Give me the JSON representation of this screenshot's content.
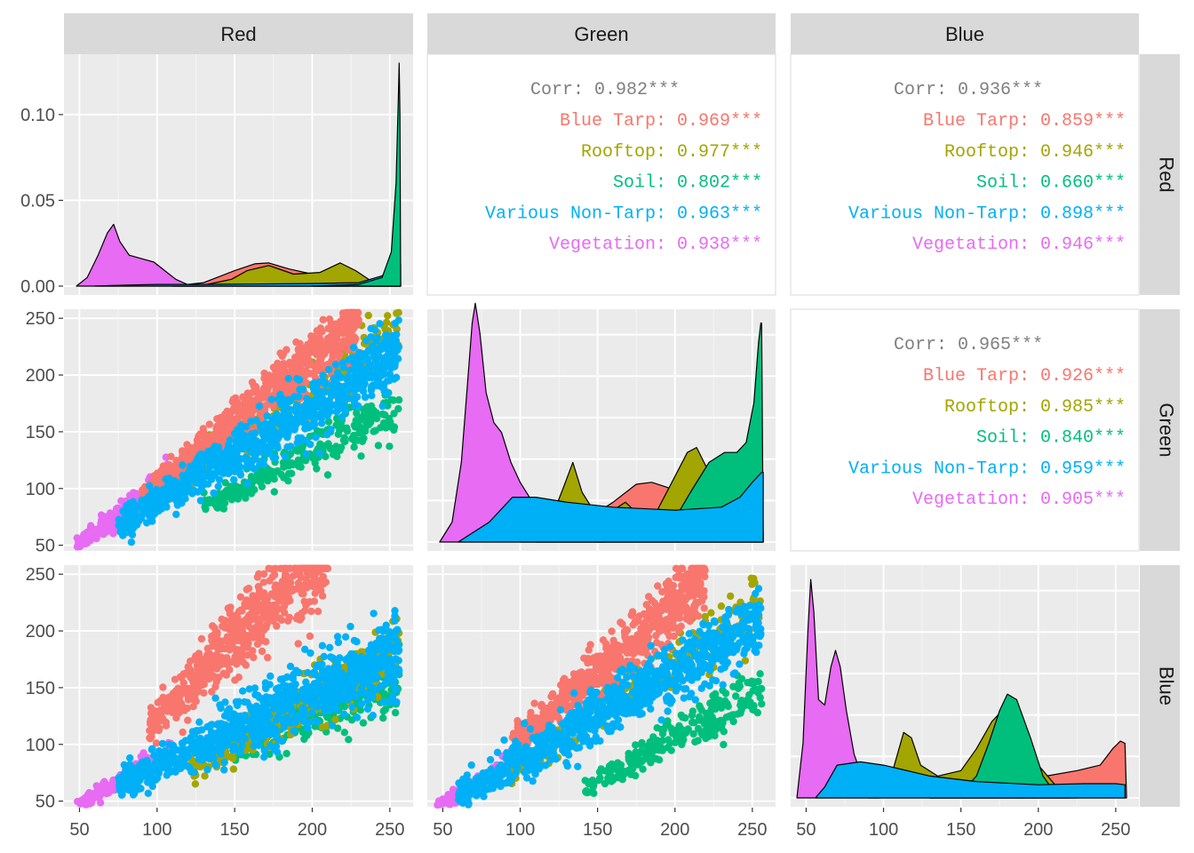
{
  "variables": [
    "Red",
    "Green",
    "Blue"
  ],
  "colors": {
    "Blue Tarp": "#F8766D",
    "Rooftop": "#A3A500",
    "Soil": "#00BF7D",
    "Various Non-Tarp": "#00B0F6",
    "Vegetation": "#E76BF3",
    "overall": "#7f7f7f"
  },
  "chart_data": {
    "type": "pairs",
    "title": "",
    "classes": [
      "Blue Tarp",
      "Rooftop",
      "Soil",
      "Various Non-Tarp",
      "Vegetation"
    ],
    "axes": {
      "x_ticks": [
        "50",
        "100",
        "150",
        "200",
        "250"
      ],
      "x_tick_values": [
        50,
        100,
        150,
        200,
        250
      ],
      "xlim": [
        40,
        265
      ],
      "scatter_y_ticks": [
        "50",
        "100",
        "150",
        "200",
        "250"
      ],
      "scatter_y_tick_values": [
        50,
        100,
        150,
        200,
        250
      ],
      "scatter_ylim": [
        45,
        258
      ],
      "density_y_ticks": [
        "0.00",
        "0.05",
        "0.10"
      ],
      "density_y_tick_values": [
        0.0,
        0.05,
        0.1
      ],
      "density_ylim": [
        0,
        0.13
      ]
    },
    "correlations": {
      "Green_vs_Red": {
        "overall": "Corr: 0.982***",
        "rows": [
          {
            "cls": "Blue Tarp",
            "text": "Blue Tarp: 0.969***"
          },
          {
            "cls": "Rooftop",
            "text": "Rooftop: 0.977***"
          },
          {
            "cls": "Soil",
            "text": "Soil: 0.802***"
          },
          {
            "cls": "Various Non-Tarp",
            "text": "Various Non-Tarp: 0.963***"
          },
          {
            "cls": "Vegetation",
            "text": "Vegetation: 0.938***"
          }
        ]
      },
      "Blue_vs_Red": {
        "overall": "Corr: 0.936***",
        "rows": [
          {
            "cls": "Blue Tarp",
            "text": "Blue Tarp: 0.859***"
          },
          {
            "cls": "Rooftop",
            "text": "Rooftop: 0.946***"
          },
          {
            "cls": "Soil",
            "text": "Soil: 0.660***"
          },
          {
            "cls": "Various Non-Tarp",
            "text": "Various Non-Tarp: 0.898***"
          },
          {
            "cls": "Vegetation",
            "text": "Vegetation: 0.946***"
          }
        ]
      },
      "Blue_vs_Green": {
        "overall": "Corr: 0.965***",
        "rows": [
          {
            "cls": "Blue Tarp",
            "text": "Blue Tarp: 0.926***"
          },
          {
            "cls": "Rooftop",
            "text": "Rooftop: 0.985***"
          },
          {
            "cls": "Soil",
            "text": "Soil: 0.840***"
          },
          {
            "cls": "Various Non-Tarp",
            "text": "Various Non-Tarp: 0.959***"
          },
          {
            "cls": "Vegetation",
            "text": "Vegetation: 0.905***"
          }
        ]
      }
    },
    "densities": {
      "Red": [
        {
          "cls": "Vegetation",
          "points": [
            [
              48,
              0
            ],
            [
              55,
              0.005
            ],
            [
              62,
              0.018
            ],
            [
              68,
              0.031
            ],
            [
              72,
              0.036
            ],
            [
              76,
              0.026
            ],
            [
              82,
              0.018
            ],
            [
              90,
              0.016
            ],
            [
              98,
              0.014
            ],
            [
              105,
              0.009
            ],
            [
              112,
              0.004
            ],
            [
              120,
              0.0008
            ],
            [
              130,
              0
            ]
          ]
        },
        {
          "cls": "Various Non-Tarp",
          "points": [
            [
              60,
              0
            ],
            [
              80,
              0.0006
            ],
            [
              100,
              0.001
            ],
            [
              130,
              0.001
            ],
            [
              160,
              0.0012
            ],
            [
              200,
              0.0015
            ],
            [
              230,
              0.002
            ],
            [
              245,
              0.006
            ],
            [
              252,
              0.011
            ],
            [
              256,
              0.013
            ],
            [
              257,
              0.013
            ]
          ]
        },
        {
          "cls": "Rooftop",
          "points": [
            [
              110,
              0
            ],
            [
              130,
              0.0005
            ],
            [
              148,
              0.004
            ],
            [
              158,
              0.009
            ],
            [
              172,
              0.012
            ],
            [
              188,
              0.007
            ],
            [
              205,
              0.008
            ],
            [
              218,
              0.0135
            ],
            [
              228,
              0.009
            ],
            [
              238,
              0.003
            ],
            [
              250,
              0.001
            ],
            [
              257,
              0
            ]
          ]
        },
        {
          "cls": "Blue Tarp",
          "points": [
            [
              110,
              0
            ],
            [
              130,
              0.002
            ],
            [
              150,
              0.009
            ],
            [
              163,
              0.013
            ],
            [
              172,
              0.0135
            ],
            [
              185,
              0.01
            ],
            [
              200,
              0.007
            ],
            [
              215,
              0.005
            ],
            [
              235,
              0.003
            ],
            [
              257,
              0.001
            ]
          ]
        },
        {
          "cls": "Soil",
          "points": [
            [
              200,
              0
            ],
            [
              230,
              0.001
            ],
            [
              245,
              0.005
            ],
            [
              251,
              0.02
            ],
            [
              254,
              0.06
            ],
            [
              255.5,
              0.11
            ],
            [
              256,
              0.13
            ],
            [
              256.5,
              0.1
            ],
            [
              257,
              0
            ]
          ]
        }
      ],
      "Green": [
        {
          "cls": "Vegetation",
          "points": [
            [
              48,
              0
            ],
            [
              56,
              0.02
            ],
            [
              62,
              0.08
            ],
            [
              66,
              0.16
            ],
            [
              69,
              0.22
            ],
            [
              71,
              0.24
            ],
            [
              74,
              0.21
            ],
            [
              78,
              0.15
            ],
            [
              83,
              0.12
            ],
            [
              88,
              0.11
            ],
            [
              94,
              0.08
            ],
            [
              100,
              0.06
            ],
            [
              110,
              0.035
            ],
            [
              125,
              0.015
            ],
            [
              140,
              0.004
            ],
            [
              155,
              0
            ]
          ]
        },
        {
          "cls": "Various Non-Tarp",
          "points": [
            [
              60,
              0
            ],
            [
              80,
              0.02
            ],
            [
              95,
              0.045
            ],
            [
              110,
              0.045
            ],
            [
              130,
              0.04
            ],
            [
              160,
              0.035
            ],
            [
              200,
              0.032
            ],
            [
              230,
              0.035
            ],
            [
              242,
              0.045
            ],
            [
              250,
              0.06
            ],
            [
              256,
              0.07
            ],
            [
              257,
              0.07
            ]
          ]
        },
        {
          "cls": "Rooftop",
          "points": [
            [
              100,
              0
            ],
            [
              118,
              0.015
            ],
            [
              128,
              0.055
            ],
            [
              134,
              0.08
            ],
            [
              140,
              0.05
            ],
            [
              148,
              0.03
            ],
            [
              158,
              0.03
            ],
            [
              168,
              0.04
            ],
            [
              178,
              0.025
            ],
            [
              188,
              0.03
            ],
            [
              198,
              0.06
            ],
            [
              208,
              0.09
            ],
            [
              214,
              0.095
            ],
            [
              222,
              0.07
            ],
            [
              235,
              0.03
            ],
            [
              250,
              0.005
            ],
            [
              257,
              0
            ]
          ]
        },
        {
          "cls": "Blue Tarp",
          "points": [
            [
              110,
              0
            ],
            [
              140,
              0.02
            ],
            [
              160,
              0.04
            ],
            [
              175,
              0.058
            ],
            [
              185,
              0.06
            ],
            [
              195,
              0.055
            ],
            [
              210,
              0.04
            ],
            [
              230,
              0.025
            ],
            [
              257,
              0.01
            ]
          ]
        },
        {
          "cls": "Soil",
          "points": [
            [
              150,
              0
            ],
            [
              175,
              0.003
            ],
            [
              195,
              0.01
            ],
            [
              210,
              0.05
            ],
            [
              222,
              0.08
            ],
            [
              232,
              0.09
            ],
            [
              240,
              0.09
            ],
            [
              246,
              0.1
            ],
            [
              251,
              0.14
            ],
            [
              254,
              0.2
            ],
            [
              255.5,
              0.22
            ],
            [
              256,
              0.22
            ],
            [
              257,
              0
            ]
          ]
        }
      ],
      "Blue": [
        {
          "cls": "Vegetation",
          "points": [
            [
              44,
              0
            ],
            [
              48,
              0.05
            ],
            [
              51,
              0.15
            ],
            [
              53,
              0.2
            ],
            [
              55,
              0.17
            ],
            [
              58,
              0.09
            ],
            [
              62,
              0.085
            ],
            [
              66,
              0.12
            ],
            [
              69,
              0.135
            ],
            [
              72,
              0.12
            ],
            [
              76,
              0.08
            ],
            [
              81,
              0.04
            ],
            [
              86,
              0.02
            ],
            [
              92,
              0.005
            ],
            [
              97,
              0
            ]
          ]
        },
        {
          "cls": "Various Non-Tarp",
          "points": [
            [
              56,
              0
            ],
            [
              62,
              0.01
            ],
            [
              70,
              0.03
            ],
            [
              85,
              0.033
            ],
            [
              100,
              0.03
            ],
            [
              130,
              0.02
            ],
            [
              160,
              0.015
            ],
            [
              200,
              0.012
            ],
            [
              230,
              0.013
            ],
            [
              250,
              0.013
            ],
            [
              256,
              0.012
            ]
          ]
        },
        {
          "cls": "Rooftop",
          "points": [
            [
              90,
              0
            ],
            [
              105,
              0.02
            ],
            [
              113,
              0.06
            ],
            [
              118,
              0.055
            ],
            [
              124,
              0.03
            ],
            [
              135,
              0.02
            ],
            [
              150,
              0.025
            ],
            [
              160,
              0.045
            ],
            [
              170,
              0.07
            ],
            [
              180,
              0.085
            ],
            [
              190,
              0.07
            ],
            [
              200,
              0.03
            ],
            [
              215,
              0.005
            ],
            [
              225,
              0
            ]
          ]
        },
        {
          "cls": "Blue Tarp",
          "points": [
            [
              130,
              0
            ],
            [
              160,
              0.01
            ],
            [
              185,
              0.02
            ],
            [
              205,
              0.02
            ],
            [
              225,
              0.025
            ],
            [
              240,
              0.03
            ],
            [
              248,
              0.045
            ],
            [
              253,
              0.052
            ],
            [
              256,
              0.05
            ],
            [
              257,
              0
            ]
          ]
        },
        {
          "cls": "Soil",
          "points": [
            [
              130,
              0
            ],
            [
              150,
              0.005
            ],
            [
              160,
              0.02
            ],
            [
              168,
              0.05
            ],
            [
              175,
              0.08
            ],
            [
              180,
              0.095
            ],
            [
              186,
              0.09
            ],
            [
              195,
              0.055
            ],
            [
              203,
              0.02
            ],
            [
              212,
              0.002
            ],
            [
              220,
              0
            ]
          ]
        }
      ]
    },
    "scatter_bands": {
      "Green_vs_Red": {
        "Vegetation": {
          "x": [
            48,
            110
          ],
          "slope": 0.98,
          "intercept": 2,
          "spread": 8
        },
        "Soil": {
          "x": [
            130,
            256
          ],
          "slope": 0.7,
          "intercept": -8,
          "spread": 12
        },
        "Rooftop": {
          "x": [
            100,
            256
          ],
          "slope": 0.95,
          "intercept": -3,
          "spread": 14
        },
        "Various Non-Tarp": {
          "x": [
            75,
            256
          ],
          "slope": 0.82,
          "intercept": 7,
          "spread": 16
        },
        "Blue Tarp": {
          "x": [
            90,
            230
          ],
          "slope": 1.1,
          "intercept": -6,
          "spread": 14
        }
      },
      "Blue_vs_Red": {
        "Vegetation": {
          "x": [
            46,
            110
          ],
          "slope": 0.82,
          "intercept": 6,
          "spread": 5
        },
        "Soil": {
          "x": [
            150,
            256
          ],
          "slope": 0.62,
          "intercept": 0,
          "spread": 14
        },
        "Rooftop": {
          "x": [
            120,
            256
          ],
          "slope": 0.8,
          "intercept": -20,
          "spread": 16
        },
        "Various Non-Tarp": {
          "x": [
            75,
            256
          ],
          "slope": 0.63,
          "intercept": 18,
          "spread": 18
        },
        "Blue Tarp": {
          "x": [
            95,
            210
          ],
          "slope": 1.38,
          "intercept": -15,
          "spread": 22
        }
      },
      "Blue_vs_Green": {
        "Vegetation": {
          "x": [
            46,
            105
          ],
          "slope": 0.83,
          "intercept": 6,
          "spread": 5
        },
        "Soil": {
          "x": [
            140,
            256
          ],
          "slope": 0.78,
          "intercept": -50,
          "spread": 12
        },
        "Rooftop": {
          "x": [
            90,
            256
          ],
          "slope": 0.9,
          "intercept": -8,
          "spread": 14
        },
        "Various Non-Tarp": {
          "x": [
            60,
            256
          ],
          "slope": 0.78,
          "intercept": 8,
          "spread": 16
        },
        "Blue Tarp": {
          "x": [
            95,
            220
          ],
          "slope": 1.15,
          "intercept": -8,
          "spread": 16
        }
      }
    }
  }
}
